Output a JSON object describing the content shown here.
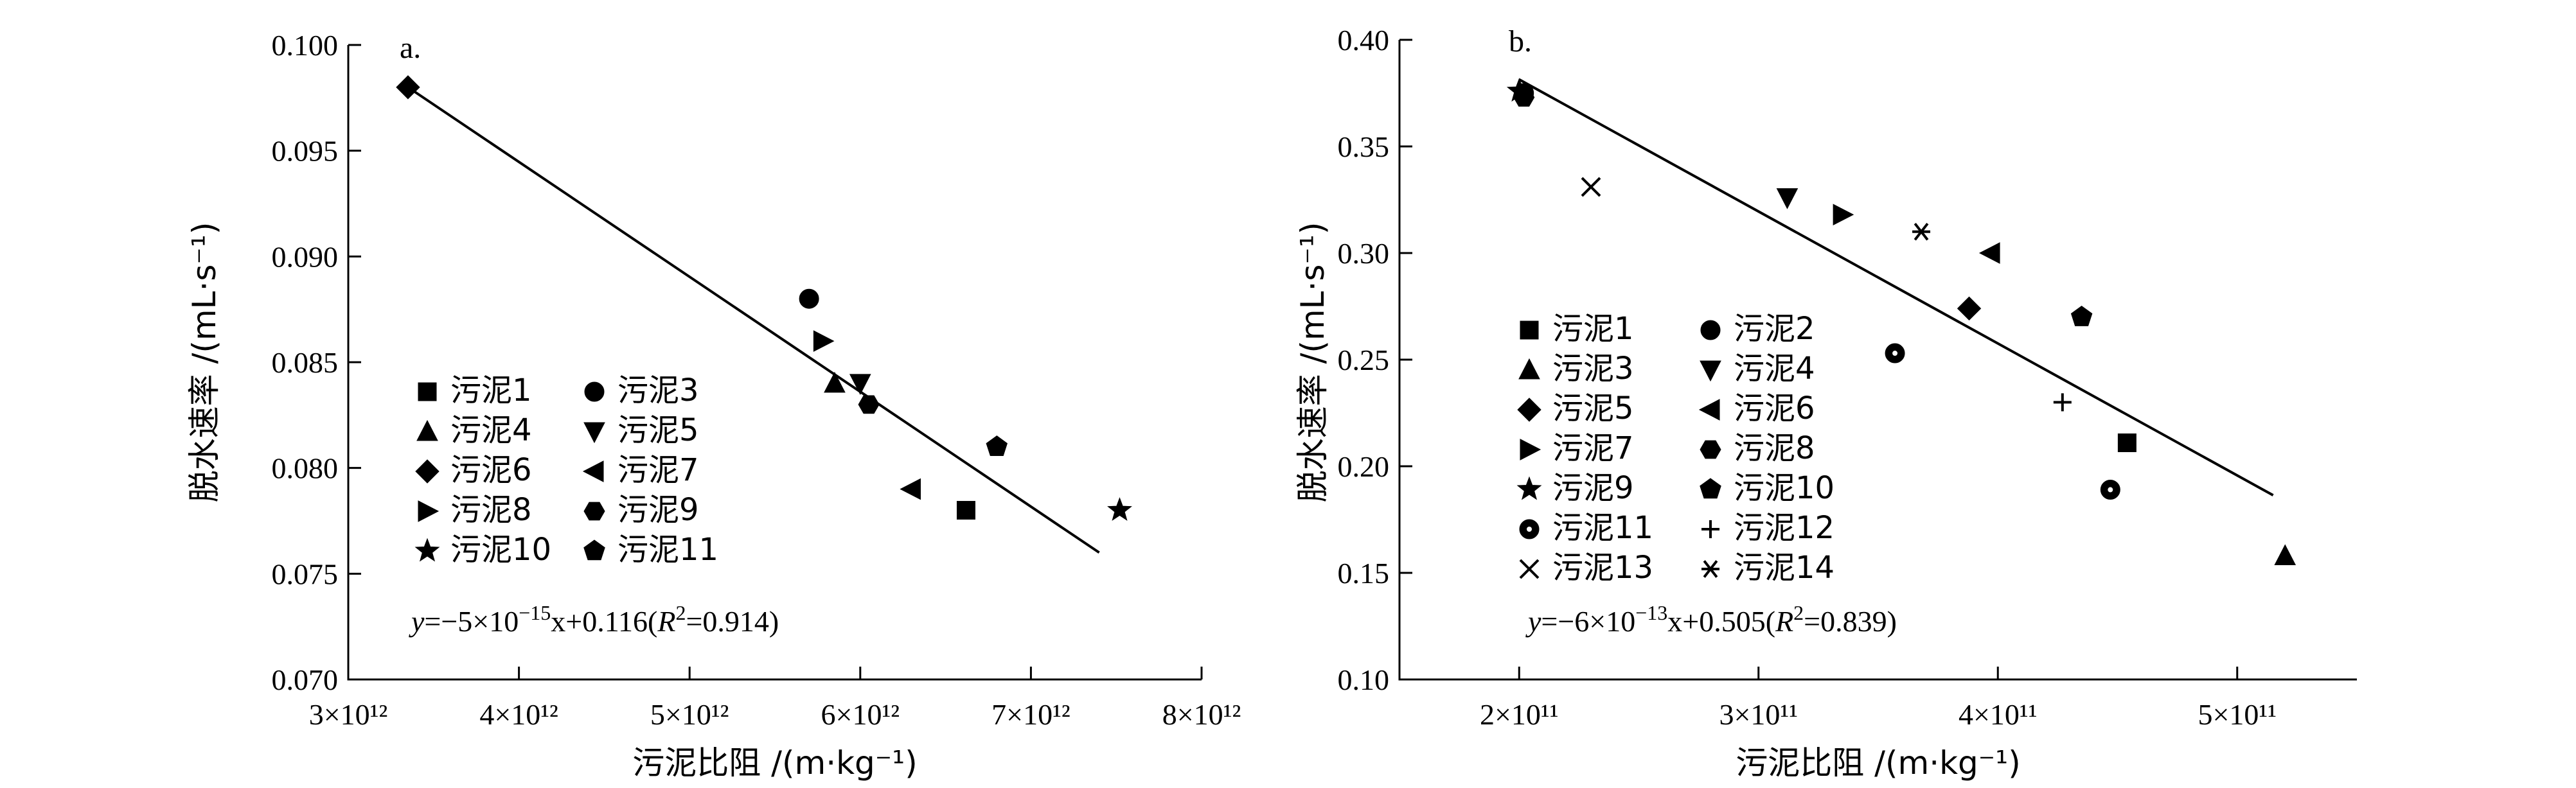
{
  "chart_data": [
    {
      "panel_label": "a.",
      "type": "scatter",
      "xlabel": "污泥比阻 /(m·kg⁻¹)",
      "ylabel": "脱水速率 /(mL·s⁻¹)",
      "xlim": [
        3000000000000.0,
        8000000000000.0
      ],
      "ylim": [
        0.07,
        0.1
      ],
      "x_ticks": [
        3000000000000.0,
        4000000000000.0,
        5000000000000.0,
        6000000000000.0,
        7000000000000.0,
        8000000000000.0
      ],
      "x_tick_labels": [
        "3×10¹²",
        "4×10¹²",
        "5×10¹²",
        "6×10¹²",
        "7×10¹²",
        "8×10¹²"
      ],
      "y_ticks": [
        0.07,
        0.075,
        0.08,
        0.085,
        0.09,
        0.095,
        0.1
      ],
      "y_tick_labels": [
        "0.070",
        "0.075",
        "0.080",
        "0.085",
        "0.090",
        "0.095",
        "0.100"
      ],
      "series": [
        {
          "name": "污泥1",
          "marker": "square",
          "points": [
            [
              6620000000000.0,
              0.078
            ]
          ]
        },
        {
          "name": "污泥3",
          "marker": "circle",
          "points": [
            [
              5700000000000.0,
              0.088
            ]
          ]
        },
        {
          "name": "污泥4",
          "marker": "triangle-up",
          "points": [
            [
              5850000000000.0,
              0.084
            ]
          ]
        },
        {
          "name": "污泥5",
          "marker": "triangle-down",
          "points": [
            [
              6000000000000.0,
              0.084
            ]
          ]
        },
        {
          "name": "污泥6",
          "marker": "diamond",
          "points": [
            [
              3350000000000.0,
              0.098
            ]
          ]
        },
        {
          "name": "污泥7",
          "marker": "triangle-left",
          "points": [
            [
              6300000000000.0,
              0.079
            ]
          ]
        },
        {
          "name": "污泥8",
          "marker": "triangle-right",
          "points": [
            [
              5780000000000.0,
              0.086
            ]
          ]
        },
        {
          "name": "污泥9",
          "marker": "hexagon",
          "points": [
            [
              6050000000000.0,
              0.083
            ]
          ]
        },
        {
          "name": "污泥10",
          "marker": "star",
          "points": [
            [
              7520000000000.0,
              0.078
            ]
          ]
        },
        {
          "name": "污泥11",
          "marker": "pentagon",
          "points": [
            [
              6800000000000.0,
              0.081
            ]
          ]
        }
      ],
      "fit_line": {
        "x": [
          3350000000000.0,
          7400000000000.0
        ],
        "y": [
          0.098,
          0.076
        ]
      },
      "equation": {
        "pre": "y",
        "mid": "=−5×10",
        "exp": "−15",
        "post": "x+0.116(",
        "r": "R",
        "r_exp": "2",
        "tail": "=0.914)"
      },
      "legend_position": "bottom-left"
    },
    {
      "panel_label": "b.",
      "type": "scatter",
      "xlabel": "污泥比阻 /(m·kg⁻¹)",
      "ylabel": "脱水速率 /(mL·s⁻¹)",
      "xlim": [
        150000000000.0,
        550000000000.0
      ],
      "ylim": [
        0.1,
        0.4
      ],
      "x_ticks": [
        200000000000.0,
        300000000000.0,
        400000000000.0,
        500000000000.0
      ],
      "x_tick_labels": [
        "2×10¹¹",
        "3×10¹¹",
        "4×10¹¹",
        "5×10¹¹"
      ],
      "y_ticks": [
        0.1,
        0.15,
        0.2,
        0.25,
        0.3,
        0.35,
        0.4
      ],
      "y_tick_labels": [
        "0.10",
        "0.15",
        "0.20",
        "0.25",
        "0.30",
        "0.35",
        "0.40"
      ],
      "series": [
        {
          "name": "污泥1",
          "marker": "square",
          "points": [
            [
              454000000000.0,
              0.211
            ]
          ]
        },
        {
          "name": "污泥2",
          "marker": "circle",
          "points": [
            [
              202000000000.0,
              0.375
            ]
          ]
        },
        {
          "name": "污泥3",
          "marker": "triangle-up",
          "points": [
            [
              520000000000.0,
              0.158
            ]
          ]
        },
        {
          "name": "污泥4",
          "marker": "triangle-down",
          "points": [
            [
              312000000000.0,
              0.326
            ]
          ]
        },
        {
          "name": "污泥5",
          "marker": "diamond",
          "points": [
            [
              388000000000.0,
              0.274
            ]
          ]
        },
        {
          "name": "污泥6",
          "marker": "triangle-left",
          "points": [
            [
              397000000000.0,
              0.3
            ]
          ]
        },
        {
          "name": "污泥7",
          "marker": "triangle-right",
          "points": [
            [
              335000000000.0,
              0.318
            ]
          ]
        },
        {
          "name": "污泥8",
          "marker": "hexagon",
          "points": [
            [
              202000000000.0,
              0.373
            ]
          ]
        },
        {
          "name": "污泥9",
          "marker": "star",
          "points": [
            [
              200000000000.0,
              0.376
            ]
          ]
        },
        {
          "name": "污泥10",
          "marker": "pentagon",
          "points": [
            [
              435000000000.0,
              0.27
            ]
          ]
        },
        {
          "name": "污泥11",
          "marker": "ring",
          "points": [
            [
              357000000000.0,
              0.253
            ],
            [
              447000000000.0,
              0.189
            ]
          ]
        },
        {
          "name": "污泥12",
          "marker": "plus",
          "points": [
            [
              427000000000.0,
              0.23
            ]
          ]
        },
        {
          "name": "污泥13",
          "marker": "x",
          "points": [
            [
              230000000000.0,
              0.331
            ]
          ]
        },
        {
          "name": "污泥14",
          "marker": "asterisk",
          "points": [
            [
              368000000000.0,
              0.31
            ]
          ]
        }
      ],
      "fit_line": {
        "x": [
          200000000000.0,
          515000000000.0
        ],
        "y": [
          0.3814,
          0.1864
        ]
      },
      "equation": {
        "pre": "y",
        "mid": "=−6×10",
        "exp": "−13",
        "post": "x+0.505(",
        "r": "R",
        "r_exp": "2",
        "tail": "=0.839)"
      },
      "legend_position": "left-middle"
    }
  ]
}
